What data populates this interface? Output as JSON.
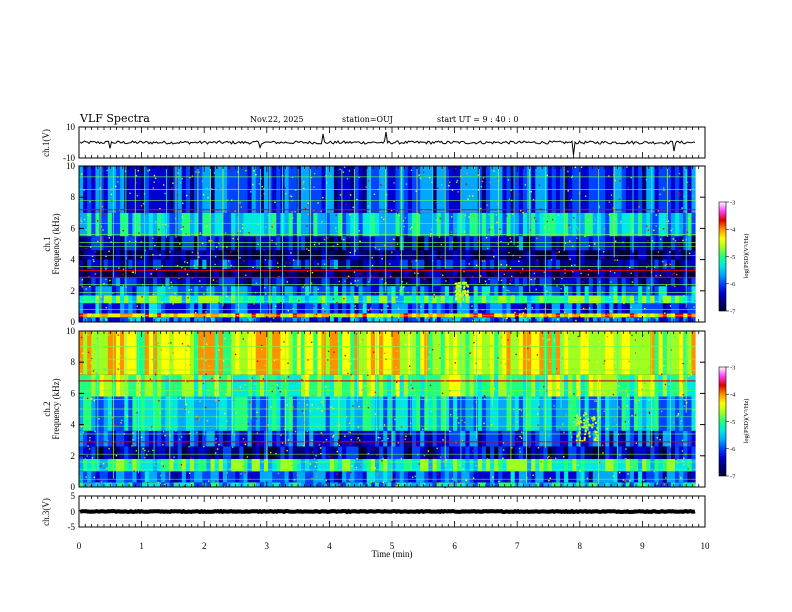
{
  "header": {
    "title": "VLF Spectra",
    "date": "Nov.22, 2025",
    "station": "station=OUJ",
    "start": "start  UT =   9 : 40 : 0"
  },
  "colors": {
    "colormap": [
      "#000033",
      "#00007a",
      "#0000d0",
      "#0044ff",
      "#00a8ff",
      "#00e8e0",
      "#20ff80",
      "#a0ff20",
      "#ffff00",
      "#ff9000",
      "#e00000",
      "#ff40ff",
      "#ffffff"
    ],
    "trace": "#000000"
  },
  "chart_data": [
    {
      "type": "line",
      "name": "ch1-waveform",
      "ylabel": "ch.1(V)",
      "ylim": [
        -10,
        10
      ],
      "yticks": [
        "10",
        "-10"
      ],
      "xlim": [
        0,
        10
      ],
      "baseline": 0,
      "noise_amplitude": 1,
      "spikes": [
        {
          "t": 0.5,
          "amp": 3
        },
        {
          "t": 2.9,
          "amp": 4
        },
        {
          "t": 3.9,
          "amp": 5
        },
        {
          "t": 4.9,
          "amp": 6
        },
        {
          "t": 7.9,
          "amp": 8
        },
        {
          "t": 9.5,
          "amp": 5
        }
      ]
    },
    {
      "type": "heatmap",
      "name": "ch1-spectrogram",
      "ylabel": "ch.1\nFrequency (kHz)",
      "ylim": [
        0,
        10
      ],
      "yticks": [
        "0",
        "2",
        "4",
        "6",
        "8",
        "10"
      ],
      "xlim": [
        0,
        9.85
      ],
      "colorbar": {
        "label": "log(PSD)(V²/Hz)",
        "range": [
          -7,
          -3
        ],
        "ticks": [
          "-3",
          "-4",
          "-5",
          "-6",
          "-7"
        ]
      },
      "bands": [
        {
          "f0": 0,
          "f1": 0.3,
          "level": -5.8
        },
        {
          "f0": 0.3,
          "f1": 0.55,
          "level": -4.0
        },
        {
          "f0": 0.55,
          "f1": 1.2,
          "level": -5.9
        },
        {
          "f0": 1.2,
          "f1": 1.7,
          "level": -4.9
        },
        {
          "f0": 1.7,
          "f1": 2.3,
          "level": -5.8
        },
        {
          "f0": 2.3,
          "f1": 2.9,
          "level": -6.3
        },
        {
          "f0": 2.9,
          "f1": 3.4,
          "level": -6.8
        },
        {
          "f0": 3.4,
          "f1": 4.0,
          "level": -6.3
        },
        {
          "f0": 4.0,
          "f1": 4.6,
          "level": -6.8
        },
        {
          "f0": 4.6,
          "f1": 5.5,
          "level": -6.3
        },
        {
          "f0": 5.5,
          "f1": 7.0,
          "level": -5.4
        },
        {
          "f0": 7.0,
          "f1": 10.0,
          "level": -6.0
        }
      ],
      "lines_khz": [
        0.4,
        0.8,
        1.3,
        1.9,
        2.4,
        2.85,
        3.3,
        3.55,
        4.25,
        4.85,
        5.1,
        5.6,
        6.3,
        7.2,
        7.8,
        8.5,
        9.3
      ],
      "red_lines_khz": [
        2.85,
        3.3,
        7.2
      ],
      "spike_times_min": [
        0.35,
        0.55,
        0.75,
        0.9,
        1.05,
        1.4,
        1.55,
        1.9,
        2.1,
        2.3,
        2.55,
        2.9,
        3.05,
        3.25,
        3.5,
        3.7,
        3.95,
        4.2,
        4.4,
        4.65,
        4.9,
        5.15,
        5.4,
        5.65,
        5.85,
        6.1,
        6.4,
        6.7,
        6.95,
        7.2,
        7.45,
        7.75,
        8.0,
        8.3,
        8.55,
        8.85,
        9.15,
        9.4,
        9.7
      ],
      "emission_patch": {
        "t0": 6.0,
        "t1": 6.2,
        "f0": 1.5,
        "f1": 2.6,
        "level": -4.5
      }
    },
    {
      "type": "heatmap",
      "name": "ch2-spectrogram",
      "ylabel": "ch.2\nFrequency (kHz)",
      "ylim": [
        0,
        10
      ],
      "yticks": [
        "0",
        "2",
        "4",
        "6",
        "8",
        "10"
      ],
      "xlim": [
        0,
        9.85
      ],
      "colorbar": {
        "label": "log(PSD)(V²/Hz)",
        "range": [
          -7,
          -3
        ],
        "ticks": [
          "-3",
          "-4",
          "-5",
          "-6",
          "-7"
        ]
      },
      "bands": [
        {
          "f0": 0,
          "f1": 0.3,
          "level": -5.4
        },
        {
          "f0": 0.3,
          "f1": 1.0,
          "level": -5.9
        },
        {
          "f0": 1.0,
          "f1": 1.8,
          "level": -4.9
        },
        {
          "f0": 1.8,
          "f1": 2.6,
          "level": -6.4
        },
        {
          "f0": 2.6,
          "f1": 3.6,
          "level": -6.0
        },
        {
          "f0": 3.6,
          "f1": 5.8,
          "level": -5.4
        },
        {
          "f0": 5.8,
          "f1": 7.2,
          "level": -4.6
        },
        {
          "f0": 7.2,
          "f1": 10.0,
          "level": -4.2
        }
      ],
      "lines_khz": [
        0.5,
        1.1,
        1.6,
        2.1,
        2.9,
        3.4,
        3.9,
        4.5,
        5.0,
        5.6,
        6.2,
        6.8,
        7.5,
        8.2,
        9.0
      ],
      "red_lines_khz": [
        2.9,
        6.8
      ],
      "spike_times_min": [
        0.3,
        0.55,
        0.75,
        0.95,
        1.2,
        1.45,
        1.7,
        2.0,
        2.2,
        2.45,
        2.75,
        3.0,
        3.3,
        3.6,
        3.9,
        4.15,
        4.45,
        4.75,
        5.0,
        5.3,
        5.55,
        5.85,
        6.1,
        6.35,
        6.6,
        6.9,
        7.15,
        7.45,
        7.7,
        8.0,
        8.3,
        8.6,
        8.9,
        9.15,
        9.45,
        9.7
      ],
      "emission_patch": {
        "t0": 7.9,
        "t1": 8.3,
        "f0": 3.0,
        "f1": 4.8,
        "level": -4.6
      }
    },
    {
      "type": "line",
      "name": "ch3-waveform",
      "ylabel": "ch.3(V)",
      "ylim": [
        -5,
        5
      ],
      "yticks": [
        "5",
        "0",
        "-5"
      ],
      "xlim": [
        0,
        10
      ],
      "xlabel": "Time (min)",
      "xticks": [
        "0",
        "1",
        "2",
        "3",
        "4",
        "5",
        "6",
        "7",
        "8",
        "9",
        "10"
      ],
      "baseline": 0,
      "noise_amplitude": 0.15,
      "spikes": []
    }
  ]
}
